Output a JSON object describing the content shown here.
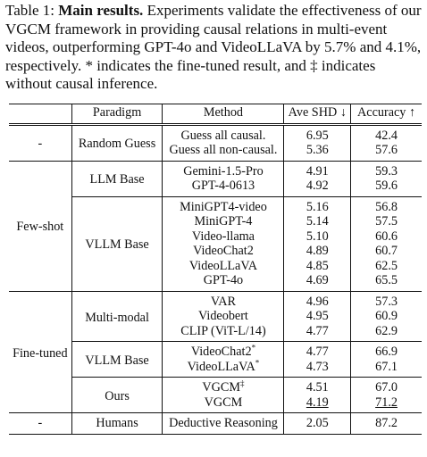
{
  "caption": {
    "label": "Table 1:",
    "title": "Main results.",
    "text": "Experiments validate the effectiveness of our VGCM framework in providing causal relations in multi-event videos, outperforming GPT-4o and VideoLLaVA by 5.7% and 4.1%, respectively. * indicates the fine-tuned result, and ‡ indicates without causal inference."
  },
  "table": {
    "headers": {
      "setting": "",
      "paradigm": "Paradigm",
      "method": "Method",
      "shd": "Ave SHD ↓",
      "accuracy": "Accuracy ↑"
    },
    "random": {
      "setting": "-",
      "paradigm": "Random Guess",
      "rows": [
        {
          "method": "Guess all causal.",
          "shd": "6.95",
          "acc": "42.4"
        },
        {
          "method": "Guess all non-causal.",
          "shd": "5.36",
          "acc": "57.6"
        }
      ]
    },
    "fewshot": {
      "setting": "Few-shot",
      "llm": {
        "paradigm": "LLM Base",
        "rows": [
          {
            "method": "Gemini-1.5-Pro",
            "shd": "4.91",
            "acc": "59.3"
          },
          {
            "method": "GPT-4-0613",
            "shd": "4.92",
            "acc": "59.6"
          }
        ]
      },
      "vllm": {
        "paradigm": "VLLM Base",
        "rows": [
          {
            "method": "MiniGPT4-video",
            "shd": "5.16",
            "acc": "56.8"
          },
          {
            "method": "MiniGPT-4",
            "shd": "5.14",
            "acc": "57.5"
          },
          {
            "method": "Video-llama",
            "shd": "5.10",
            "acc": "60.6"
          },
          {
            "method": "VideoChat2",
            "shd": "4.89",
            "acc": "60.7"
          },
          {
            "method": "VideoLLaVA",
            "shd": "4.85",
            "acc": "62.5"
          },
          {
            "method": "GPT-4o",
            "shd": "4.69",
            "acc": "65.5"
          }
        ]
      }
    },
    "finetuned": {
      "setting": "Fine-tuned",
      "multimodal": {
        "paradigm": "Multi-modal",
        "rows": [
          {
            "method": "VAR",
            "shd": "4.96",
            "acc": "57.3"
          },
          {
            "method": "Videobert",
            "shd": "4.95",
            "acc": "60.9"
          },
          {
            "method": "CLIP (ViT-L/14)",
            "shd": "4.77",
            "acc": "62.9"
          }
        ]
      },
      "vllm": {
        "paradigm": "VLLM Base",
        "rows": [
          {
            "method": "VideoChat2",
            "mark": "*",
            "shd": "4.77",
            "acc": "66.9"
          },
          {
            "method": "VideoLLaVA",
            "mark": "*",
            "shd": "4.73",
            "acc": "67.1"
          }
        ]
      },
      "ours": {
        "paradigm": "Ours",
        "rows": [
          {
            "method": "VGCM",
            "mark": "‡",
            "shd": "4.51",
            "acc": "67.0"
          },
          {
            "method": "VGCM",
            "shd": "4.19",
            "acc": "71.2"
          }
        ]
      }
    },
    "humans": {
      "setting": "-",
      "paradigm": "Humans",
      "method": "Deductive Reasoning",
      "shd": "2.05",
      "acc": "87.2"
    }
  }
}
